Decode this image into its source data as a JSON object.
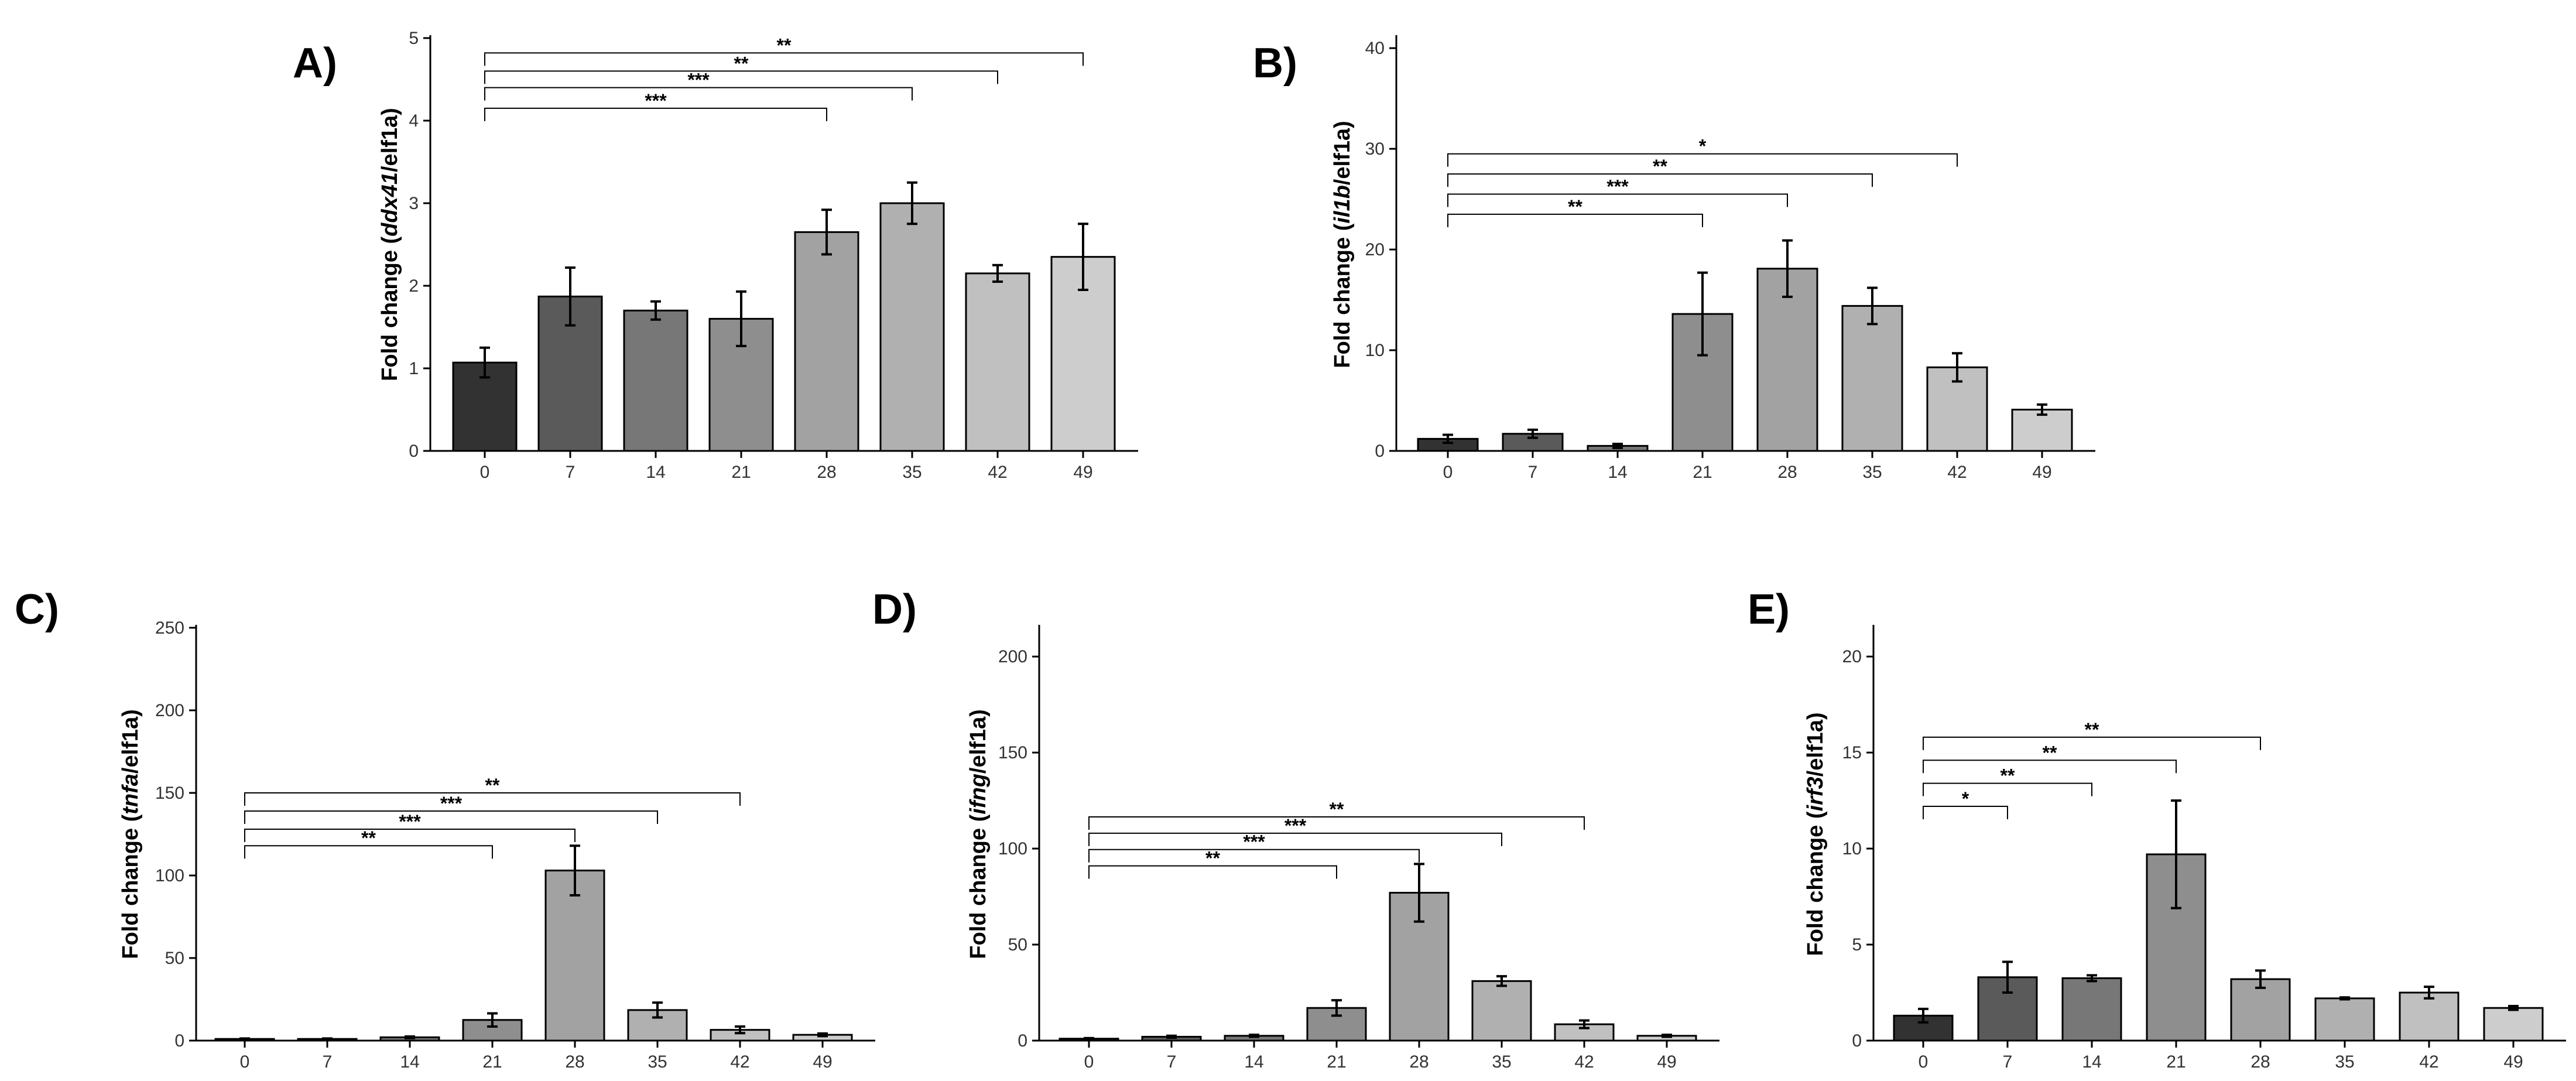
{
  "chart_data": [
    {
      "type": "bar",
      "panel_label": "A)",
      "ylabel_prefix": "Fold change (",
      "ylabel_gene": "ddx41",
      "ylabel_suffix": "/elf1a)",
      "categories": [
        "0",
        "7",
        "14",
        "21",
        "28",
        "35",
        "42",
        "49"
      ],
      "values": [
        1.07,
        1.87,
        1.7,
        1.6,
        2.65,
        3.0,
        2.15,
        2.35
      ],
      "errors": [
        0.18,
        0.35,
        0.11,
        0.33,
        0.27,
        0.25,
        0.1,
        0.4
      ],
      "colors": [
        "#323232",
        "#5a5a5a",
        "#777777",
        "#8e8e8e",
        "#a2a2a2",
        "#b0b0b0",
        "#c0c0c0",
        "#cdcdcd"
      ],
      "ylim": [
        0,
        5
      ],
      "yticks": [
        "0",
        "1",
        "2",
        "3",
        "4",
        "5"
      ],
      "significance": [
        {
          "from": "0",
          "to": "28",
          "label": "***",
          "y": 4.15
        },
        {
          "from": "0",
          "to": "35",
          "label": "***",
          "y": 4.4
        },
        {
          "from": "0",
          "to": "42",
          "label": "**",
          "y": 4.6
        },
        {
          "from": "0",
          "to": "49",
          "label": "**",
          "y": 4.82
        }
      ]
    },
    {
      "type": "bar",
      "panel_label": "B)",
      "ylabel_prefix": "Fold change (",
      "ylabel_gene": "il1b",
      "ylabel_suffix": "/elf1a)",
      "categories": [
        "0",
        "7",
        "14",
        "21",
        "28",
        "35",
        "42",
        "49"
      ],
      "values": [
        1.2,
        1.7,
        0.5,
        13.6,
        18.1,
        14.4,
        8.3,
        4.1
      ],
      "errors": [
        0.4,
        0.4,
        0.2,
        4.1,
        2.8,
        1.8,
        1.4,
        0.5
      ],
      "colors": [
        "#323232",
        "#5a5a5a",
        "#777777",
        "#8e8e8e",
        "#a2a2a2",
        "#b0b0b0",
        "#c0c0c0",
        "#cdcdcd"
      ],
      "ylim": [
        0,
        41
      ],
      "yticks": [
        "0",
        "10",
        "20",
        "30",
        "40"
      ],
      "significance": [
        {
          "from": "0",
          "to": "21",
          "label": "**",
          "y": 23.5
        },
        {
          "from": "0",
          "to": "28",
          "label": "***",
          "y": 25.5
        },
        {
          "from": "0",
          "to": "35",
          "label": "**",
          "y": 27.5
        },
        {
          "from": "0",
          "to": "42",
          "label": "*",
          "y": 29.5
        }
      ]
    },
    {
      "type": "bar",
      "panel_label": "C)",
      "ylabel_prefix": "Fold change (",
      "ylabel_gene": "tnfa",
      "ylabel_suffix": "/elf1a)",
      "categories": [
        "0",
        "7",
        "14",
        "21",
        "28",
        "35",
        "42",
        "49"
      ],
      "values": [
        1.0,
        1.0,
        2.0,
        12.5,
        103.0,
        18.5,
        6.5,
        3.5
      ],
      "errors": [
        0.3,
        0.3,
        0.5,
        4.0,
        15.0,
        4.5,
        2.0,
        0.8
      ],
      "colors": [
        "#323232",
        "#5a5a5a",
        "#777777",
        "#8e8e8e",
        "#a2a2a2",
        "#b0b0b0",
        "#c0c0c0",
        "#cdcdcd"
      ],
      "ylim": [
        0,
        250
      ],
      "yticks": [
        "0",
        "50",
        "100",
        "150",
        "200",
        "250"
      ],
      "significance": [
        {
          "from": "0",
          "to": "21",
          "label": "**",
          "y": 118
        },
        {
          "from": "0",
          "to": "28",
          "label": "***",
          "y": 128
        },
        {
          "from": "0",
          "to": "35",
          "label": "***",
          "y": 139
        },
        {
          "from": "0",
          "to": "42",
          "label": "**",
          "y": 150
        }
      ]
    },
    {
      "type": "bar",
      "panel_label": "D)",
      "ylabel_prefix": "Fold change (",
      "ylabel_gene": "ifng",
      "ylabel_suffix": "/elf1a)",
      "categories": [
        "0",
        "7",
        "14",
        "21",
        "28",
        "35",
        "42",
        "49"
      ],
      "values": [
        1.0,
        2.0,
        2.5,
        17.0,
        77.0,
        31.0,
        8.5,
        2.5
      ],
      "errors": [
        0.3,
        0.5,
        0.5,
        4.0,
        15.0,
        2.5,
        2.0,
        0.5
      ],
      "colors": [
        "#323232",
        "#5a5a5a",
        "#777777",
        "#8e8e8e",
        "#a2a2a2",
        "#b0b0b0",
        "#c0c0c0",
        "#cdcdcd"
      ],
      "ylim": [
        0,
        215
      ],
      "yticks": [
        "0",
        "50",
        "100",
        "150",
        "200"
      ],
      "significance": [
        {
          "from": "0",
          "to": "21",
          "label": "**",
          "y": 91
        },
        {
          "from": "0",
          "to": "28",
          "label": "***",
          "y": 99.5
        },
        {
          "from": "0",
          "to": "35",
          "label": "***",
          "y": 108
        },
        {
          "from": "0",
          "to": "42",
          "label": "**",
          "y": 116.5
        }
      ]
    },
    {
      "type": "bar",
      "panel_label": "E)",
      "ylabel_prefix": "Fold change (",
      "ylabel_gene": "irf3",
      "ylabel_suffix": "/elf1a)",
      "categories": [
        "0",
        "7",
        "14",
        "21",
        "28",
        "35",
        "42",
        "49"
      ],
      "values": [
        1.3,
        3.3,
        3.25,
        9.7,
        3.2,
        2.2,
        2.5,
        1.7
      ],
      "errors": [
        0.35,
        0.8,
        0.15,
        2.8,
        0.45,
        0.05,
        0.3,
        0.1
      ],
      "colors": [
        "#323232",
        "#5a5a5a",
        "#777777",
        "#8e8e8e",
        "#a2a2a2",
        "#b0b0b0",
        "#c0c0c0",
        "#cdcdcd"
      ],
      "ylim": [
        0,
        21.5
      ],
      "yticks": [
        "0",
        "5",
        "10",
        "15",
        "20"
      ],
      "significance": [
        {
          "from": "0",
          "to": "7",
          "label": "*",
          "y": 12.2
        },
        {
          "from": "0",
          "to": "14",
          "label": "**",
          "y": 13.4
        },
        {
          "from": "0",
          "to": "21",
          "label": "**",
          "y": 14.6
        },
        {
          "from": "0",
          "to": "28",
          "label": "**",
          "y": 15.8
        }
      ]
    }
  ]
}
